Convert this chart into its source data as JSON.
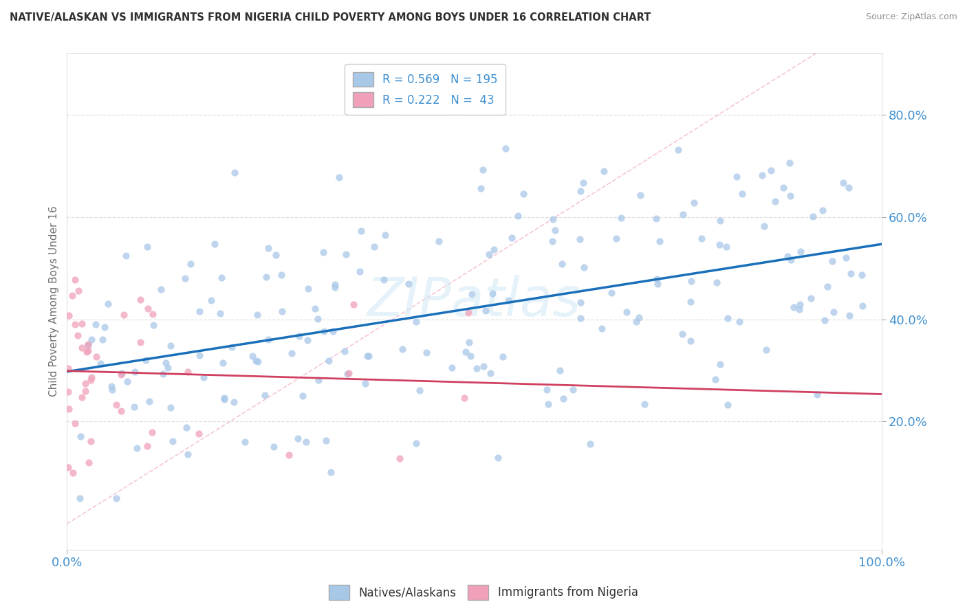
{
  "title": "NATIVE/ALASKAN VS IMMIGRANTS FROM NIGERIA CHILD POVERTY AMONG BOYS UNDER 16 CORRELATION CHART",
  "source": "Source: ZipAtlas.com",
  "ylabel": "Child Poverty Among Boys Under 16",
  "xlim": [
    0,
    1.0
  ],
  "ylim": [
    -0.05,
    0.92
  ],
  "x_tick_labels": [
    "0.0%",
    "100.0%"
  ],
  "y_tick_labels": [
    "20.0%",
    "40.0%",
    "60.0%",
    "80.0%"
  ],
  "y_tick_positions": [
    0.2,
    0.4,
    0.6,
    0.8
  ],
  "blue_R": 0.569,
  "blue_N": 195,
  "pink_R": 0.222,
  "pink_N": 43,
  "blue_color": "#a8c8e8",
  "pink_color": "#f0a0b8",
  "blue_line_color": "#1a6fba",
  "pink_line_color": "#d04060",
  "grid_color": "#e0e0e0",
  "background_color": "#ffffff",
  "title_color": "#303030",
  "source_color": "#909090",
  "axis_label_color": "#707070",
  "tick_label_color": "#4090d0",
  "legend_label1": "Natives/Alaskans",
  "legend_label2": "Immigrants from Nigeria",
  "watermark": "ZIPatlas"
}
